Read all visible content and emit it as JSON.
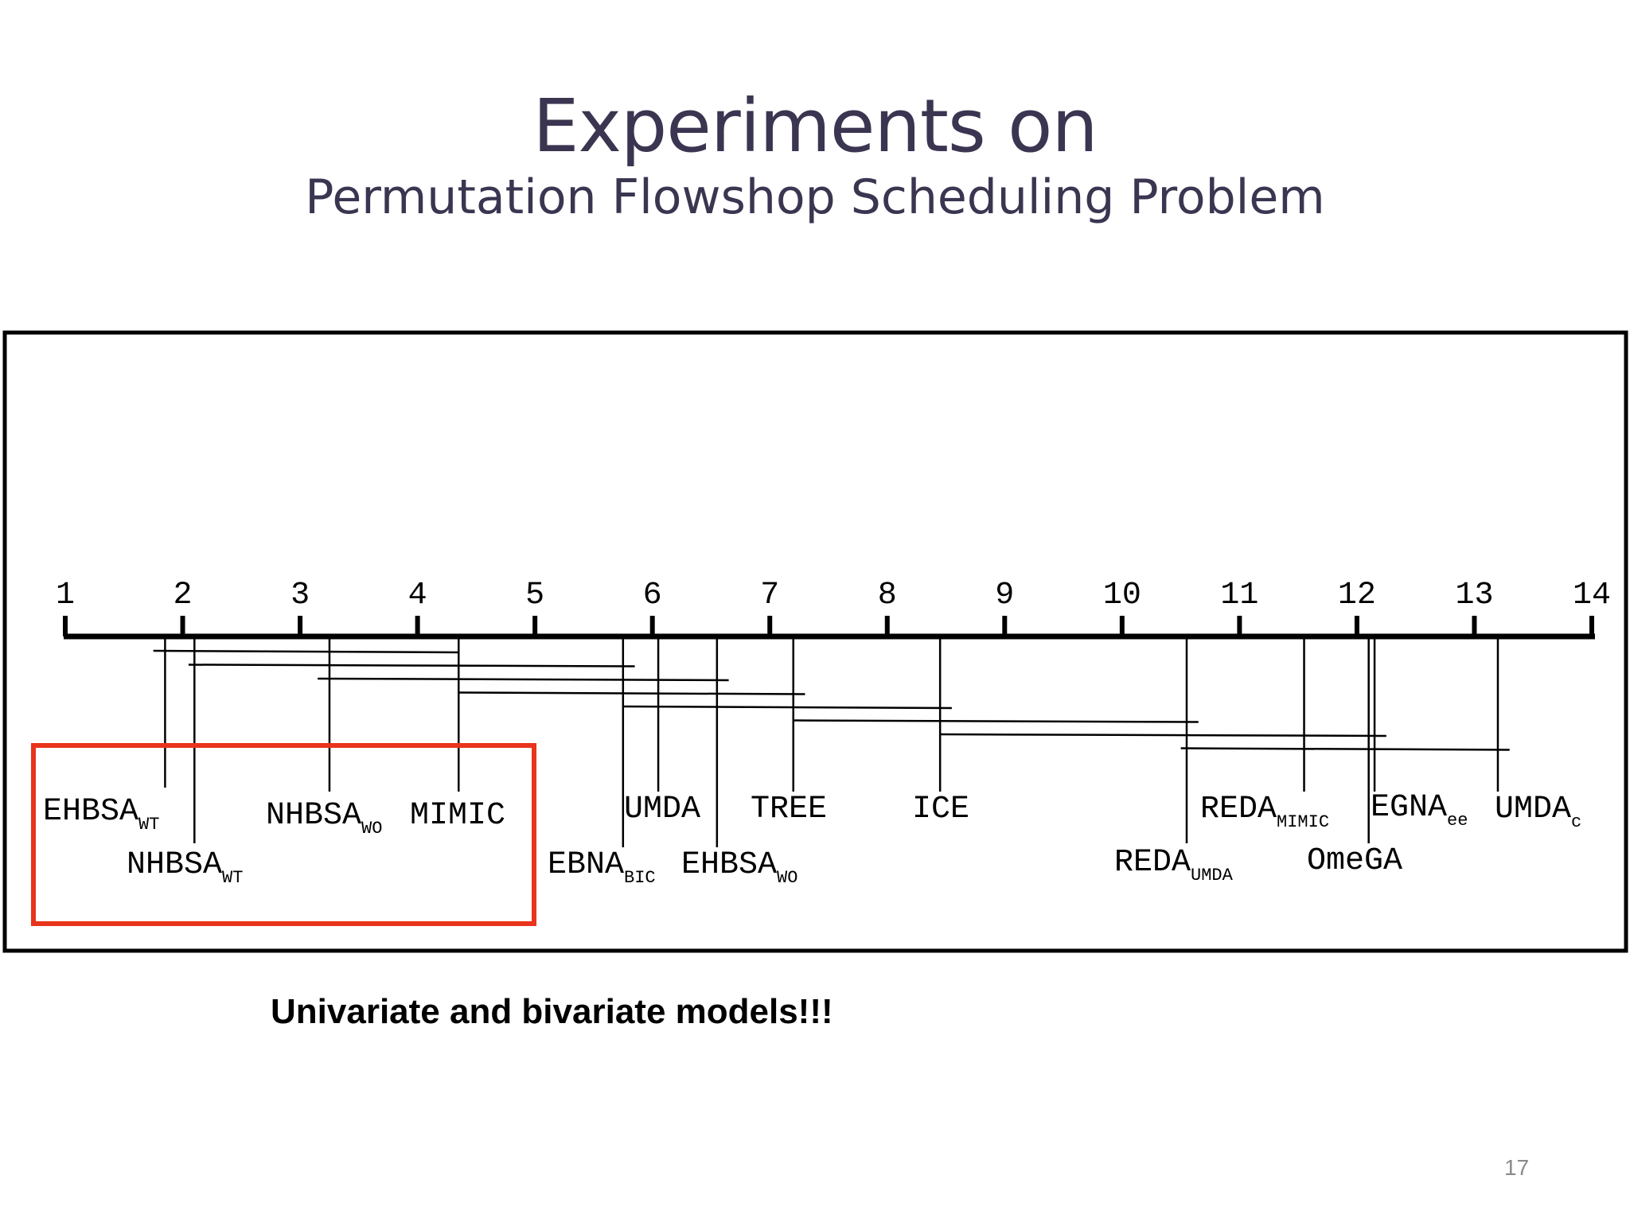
{
  "slide": {
    "title": "Experiments on",
    "subtitle": "Permutation Flowshop Scheduling Problem",
    "note": "Univariate and bivariate models!!!",
    "page_number": "17"
  },
  "colors": {
    "title": "#3b3551",
    "axis": "#000000",
    "highlight": "#e8341c"
  },
  "chart_data": {
    "type": "critical-difference",
    "axis_min": 1,
    "axis_max": 14,
    "ticks": [
      "1",
      "2",
      "3",
      "4",
      "5",
      "6",
      "7",
      "8",
      "9",
      "10",
      "11",
      "12",
      "13",
      "14"
    ],
    "algorithms": [
      {
        "name": "EHBSA",
        "sub": "WT",
        "rank": 1.85
      },
      {
        "name": "NHBSA",
        "sub": "WT",
        "rank": 2.1
      },
      {
        "name": "NHBSA",
        "sub": "WO",
        "rank": 3.25
      },
      {
        "name": "MIMIC",
        "sub": "",
        "rank": 4.35
      },
      {
        "name": "EBNA",
        "sub": "BIC",
        "rank": 5.75
      },
      {
        "name": "UMDA",
        "sub": "",
        "rank": 6.05
      },
      {
        "name": "EHBSA",
        "sub": "WO",
        "rank": 6.55
      },
      {
        "name": "TREE",
        "sub": "",
        "rank": 7.2
      },
      {
        "name": "ICE",
        "sub": "",
        "rank": 8.45
      },
      {
        "name": "REDA",
        "sub": "UMDA",
        "rank": 10.55
      },
      {
        "name": "REDA",
        "sub": "MIMIC",
        "rank": 11.55
      },
      {
        "name": "OmeGA",
        "sub": "",
        "rank": 12.1
      },
      {
        "name": "EGNA",
        "sub": "ee",
        "rank": 12.15
      },
      {
        "name": "UMDA",
        "sub": "c",
        "rank": 13.2
      }
    ],
    "cliques": [
      [
        1.75,
        4.35
      ],
      [
        2.05,
        5.85
      ],
      [
        3.15,
        6.65
      ],
      [
        4.35,
        7.3
      ],
      [
        5.75,
        8.55
      ],
      [
        7.2,
        10.65
      ],
      [
        8.45,
        12.25
      ],
      [
        10.5,
        13.3
      ]
    ]
  }
}
